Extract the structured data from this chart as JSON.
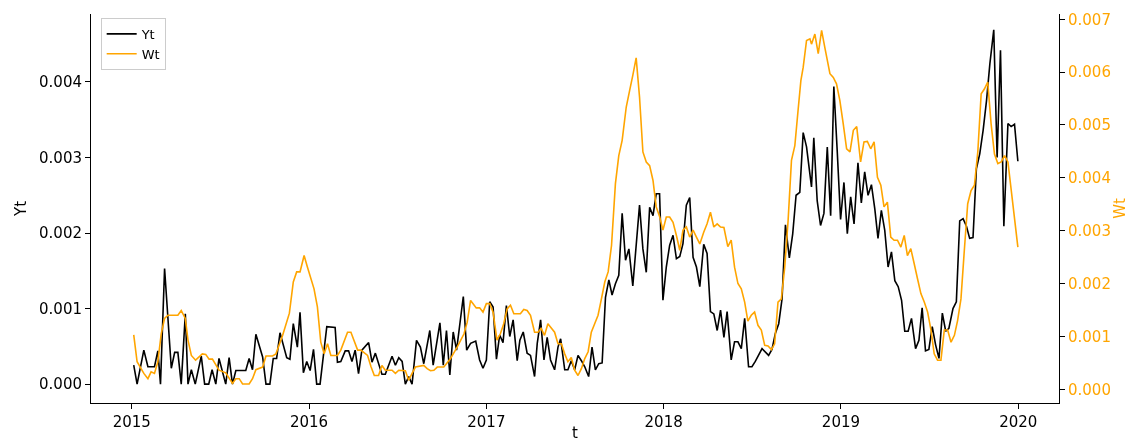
{
  "chart_data": {
    "type": "line",
    "xlabel": "t",
    "ylabel": "Yt",
    "y2label": "Wt",
    "xlim": [
      2014.77,
      2020.23
    ],
    "xticks": [
      2015,
      2016,
      2017,
      2018,
      2019,
      2020
    ],
    "ylim": [
      -0.00025,
      0.0049
    ],
    "yticks": [
      {
        "value": 0,
        "label": "0.000"
      },
      {
        "value": 0.001,
        "label": "0.001"
      },
      {
        "value": 0.002,
        "label": "0.002"
      },
      {
        "value": 0.003,
        "label": "0.003"
      },
      {
        "value": 0.004,
        "label": "0.004"
      }
    ],
    "y2lim": [
      -0.00026,
      0.0071
    ],
    "y2ticks": [
      {
        "value": 0,
        "label": "0.000"
      },
      {
        "value": 0.001,
        "label": "0.001"
      },
      {
        "value": 0.002,
        "label": "0.002"
      },
      {
        "value": 0.003,
        "label": "0.003"
      },
      {
        "value": 0.004,
        "label": "0.004"
      },
      {
        "value": 0.005,
        "label": "0.005"
      },
      {
        "value": 0.006,
        "label": "0.006"
      },
      {
        "value": 0.007,
        "label": "0.007"
      }
    ],
    "grid": false,
    "legend": "top left",
    "marker": "none",
    "line_style": "solid",
    "series": [
      {
        "name": "Yt",
        "color": "#000000",
        "x": [
          2015.011,
          2015.03,
          2015.068,
          2015.091,
          2015.128,
          2015.147,
          2015.162,
          2015.185,
          2015.223,
          2015.242,
          2015.26,
          2015.279,
          2015.302,
          2015.317,
          2015.336,
          2015.358,
          2015.392,
          2015.411,
          2015.434,
          2015.453,
          2015.474,
          2015.492,
          2015.53,
          2015.549,
          2015.568,
          2015.587,
          2015.643,
          2015.662,
          2015.681,
          2015.7,
          2015.738,
          2015.757,
          2015.779,
          2015.798,
          2015.817,
          2015.836,
          2015.874,
          2015.892,
          2015.911,
          2015.934,
          2015.949,
          2015.968,
          2015.987,
          2016.006,
          2016.025,
          2016.043,
          2016.062,
          2016.1,
          2016.147,
          2016.16,
          2016.179,
          2016.204,
          2016.223,
          2016.242,
          2016.26,
          2016.279,
          2016.298,
          2016.336,
          2016.355,
          2016.374,
          2016.411,
          2016.43,
          2016.468,
          2016.487,
          2016.506,
          2016.525,
          2016.543,
          2016.562,
          2016.581,
          2016.606,
          2016.628,
          2016.647,
          2016.681,
          2016.7,
          2016.738,
          2016.757,
          2016.775,
          2016.794,
          2016.813,
          2016.832,
          2016.87,
          2016.889,
          2016.911,
          2016.94,
          2016.962,
          2016.981,
          2017.0,
          2017.019,
          2017.038,
          2017.057,
          2017.075,
          2017.094,
          2017.113,
          2017.132,
          2017.151,
          2017.174,
          2017.189,
          2017.208,
          2017.23,
          2017.249,
          2017.272,
          2017.287,
          2017.306,
          2017.325,
          2017.343,
          2017.362,
          2017.385,
          2017.404,
          2017.419,
          2017.442,
          2017.46,
          2017.479,
          2017.498,
          2017.517,
          2017.536,
          2017.555,
          2017.577,
          2017.596,
          2017.615,
          2017.634,
          2017.653,
          2017.672,
          2017.691,
          2017.709,
          2017.728,
          2017.747,
          2017.766,
          2017.785,
          2017.804,
          2017.826,
          2017.864,
          2017.883,
          2017.902,
          2017.921,
          2017.94,
          2017.958,
          2017.977,
          2017.996,
          2018.015,
          2018.034,
          2018.053,
          2018.072,
          2018.091,
          2018.109,
          2018.128,
          2018.147,
          2018.166,
          2018.185,
          2018.204,
          2018.226,
          2018.245,
          2018.264,
          2018.283,
          2018.302,
          2018.321,
          2018.34,
          2018.358,
          2018.381,
          2018.4,
          2018.419,
          2018.438,
          2018.457,
          2018.479,
          2018.498,
          2018.517,
          2018.555,
          2018.592,
          2018.611,
          2018.63,
          2018.649,
          2018.668,
          2018.687,
          2018.709,
          2018.728,
          2018.747,
          2018.768,
          2018.787,
          2018.806,
          2018.825,
          2018.834,
          2018.847,
          2018.866,
          2018.885,
          2018.904,
          2018.923,
          2018.942,
          2018.96,
          2018.979,
          2018.998,
          2019.017,
          2019.036,
          2019.055,
          2019.074,
          2019.096,
          2019.115,
          2019.134,
          2019.153,
          2019.172,
          2019.191,
          2019.209,
          2019.228,
          2019.247,
          2019.266,
          2019.285,
          2019.304,
          2019.323,
          2019.342,
          2019.36,
          2019.379,
          2019.398,
          2019.421,
          2019.44,
          2019.458,
          2019.477,
          2019.496,
          2019.515,
          2019.534,
          2019.553,
          2019.572,
          2019.591,
          2019.609,
          2019.632,
          2019.651,
          2019.67,
          2019.689,
          2019.708,
          2019.726,
          2019.745,
          2019.764,
          2019.783,
          2019.802,
          2019.821,
          2019.84,
          2019.862,
          2019.881,
          2019.9,
          2019.919,
          2019.942,
          2019.96,
          2019.979,
          2019.998
        ],
        "values": [
          0.00025,
          0,
          0.00045,
          0.00023,
          0.00023,
          0.00044,
          0,
          0.00153,
          0.00021,
          0.00042,
          0.00042,
          0,
          0.00093,
          0,
          0.00019,
          0,
          0.00037,
          0,
          0,
          0.00019,
          0,
          0.00034,
          0,
          0.00035,
          0,
          0.00018,
          0.00018,
          0.00034,
          0.00019,
          0.00066,
          0.00036,
          0,
          0,
          0.00034,
          0.00034,
          0.00068,
          0.00035,
          0.00033,
          0.0008,
          0.00049,
          0.00095,
          0.00015,
          0.0003,
          0.00018,
          0.00046,
          0,
          0,
          0.00076,
          0.00075,
          0.00029,
          0.0003,
          0.00044,
          0.00044,
          0.0003,
          0.00045,
          0.00014,
          0.00045,
          0.00055,
          0.00029,
          0.00041,
          0.00013,
          0.00013,
          0.00037,
          0.00025,
          0.00035,
          0.0003,
          0,
          0.0001,
          0,
          0.00058,
          0.00049,
          0.00027,
          0.00071,
          0.00025,
          0.00081,
          0.00025,
          0.00071,
          0.00012,
          0.00069,
          0.00045,
          0.00116,
          0.00045,
          0.00054,
          0.00057,
          0.00032,
          0.00021,
          0.00032,
          0.00109,
          0.00102,
          0.00033,
          0.00065,
          0.00055,
          0.00104,
          0.00063,
          0.00085,
          0.00031,
          0.00058,
          0.00069,
          0.00041,
          0.00038,
          0.0001,
          0.00054,
          0.00085,
          0.00032,
          0.00062,
          0.00032,
          0.00019,
          0.00049,
          0.0006,
          0.00019,
          0.00019,
          0.00031,
          0.00019,
          0.00038,
          0.00031,
          0.00023,
          0.0001,
          0.00049,
          0.00019,
          0.00027,
          0.00028,
          0.00115,
          0.00138,
          0.00118,
          0.00133,
          0.00144,
          0.00226,
          0.00164,
          0.00179,
          0.0013,
          0.00237,
          0.00179,
          0.00148,
          0.00234,
          0.00223,
          0.00252,
          0.00252,
          0.00111,
          0.00155,
          0.00184,
          0.00197,
          0.00166,
          0.00169,
          0.00186,
          0.00237,
          0.00247,
          0.00168,
          0.00155,
          0.00129,
          0.00185,
          0.00173,
          0.00096,
          0.00093,
          0.00071,
          0.00098,
          0.00062,
          0.00096,
          0.00032,
          0.00056,
          0.00056,
          0.00047,
          0.00087,
          0.00023,
          0.00023,
          0.0003,
          0.00047,
          0.00038,
          0.00046,
          0.00067,
          0.0008,
          0.00113,
          0.00211,
          0.00167,
          0.00199,
          0.0025,
          0.00254,
          0.00333,
          0.00314,
          0.00278,
          0.00261,
          0.00326,
          0.00243,
          0.0021,
          0.00226,
          0.00314,
          0.00223,
          0.00394,
          0.00309,
          0.00218,
          0.00267,
          0.00199,
          0.00248,
          0.00212,
          0.00293,
          0.0024,
          0.00281,
          0.0025,
          0.00264,
          0.00232,
          0.00193,
          0.0023,
          0.00204,
          0.00155,
          0.00175,
          0.00137,
          0.00129,
          0.00111,
          0.0007,
          0.0007,
          0.00087,
          0.00047,
          0.00058,
          0.00101,
          0.00044,
          0.00046,
          0.00076,
          0.00052,
          0.00034,
          0.00094,
          0.0007,
          0.00074,
          0.001,
          0.00109,
          0.00216,
          0.00219,
          0.00209,
          0.00193,
          0.00194,
          0.00285,
          0.00305,
          0.00336,
          0.00375,
          0.00424,
          0.00469,
          0.003,
          0.00442,
          0.00209,
          0.00345,
          0.00341,
          0.00344,
          0.00295
        ]
      },
      {
        "name": "Wt",
        "color": "#ffa500",
        "axis": "y2",
        "x": [
          2015.011,
          2015.03,
          2015.068,
          2015.091,
          2015.109,
          2015.128,
          2015.147,
          2015.166,
          2015.185,
          2015.204,
          2015.26,
          2015.279,
          2015.302,
          2015.317,
          2015.336,
          2015.36,
          2015.398,
          2015.417,
          2015.436,
          2015.455,
          2015.492,
          2015.53,
          2015.568,
          2015.587,
          2015.606,
          2015.625,
          2015.662,
          2015.681,
          2015.7,
          2015.738,
          2015.757,
          2015.794,
          2015.813,
          2015.851,
          2015.889,
          2015.911,
          2015.93,
          2015.949,
          2015.972,
          2015.991,
          2016.028,
          2016.047,
          2016.066,
          2016.085,
          2016.104,
          2016.123,
          2016.16,
          2016.179,
          2016.217,
          2016.236,
          2016.274,
          2016.292,
          2016.33,
          2016.349,
          2016.368,
          2016.392,
          2016.411,
          2016.43,
          2016.468,
          2016.487,
          2016.506,
          2016.543,
          2016.562,
          2016.581,
          2016.6,
          2016.647,
          2016.666,
          2016.685,
          2016.704,
          2016.723,
          2016.76,
          2016.798,
          2016.836,
          2016.874,
          2016.892,
          2016.911,
          2016.925,
          2016.943,
          2016.962,
          2016.981,
          2017.0,
          2017.019,
          2017.038,
          2017.06,
          2017.079,
          2017.098,
          2017.117,
          2017.136,
          2017.155,
          2017.192,
          2017.211,
          2017.23,
          2017.249,
          2017.272,
          2017.291,
          2017.309,
          2017.328,
          2017.347,
          2017.385,
          2017.404,
          2017.423,
          2017.442,
          2017.46,
          2017.479,
          2017.498,
          2017.517,
          2017.536,
          2017.555,
          2017.574,
          2017.592,
          2017.611,
          2017.63,
          2017.649,
          2017.668,
          2017.687,
          2017.706,
          2017.728,
          2017.747,
          2017.766,
          2017.789,
          2017.808,
          2017.826,
          2017.845,
          2017.864,
          2017.883,
          2017.902,
          2017.921,
          2017.94,
          2017.958,
          2017.977,
          2017.996,
          2018.015,
          2018.034,
          2018.053,
          2018.072,
          2018.091,
          2018.109,
          2018.128,
          2018.147,
          2018.166,
          2018.185,
          2018.204,
          2018.226,
          2018.245,
          2018.264,
          2018.283,
          2018.302,
          2018.321,
          2018.34,
          2018.362,
          2018.381,
          2018.4,
          2018.419,
          2018.438,
          2018.457,
          2018.475,
          2018.494,
          2018.513,
          2018.532,
          2018.551,
          2018.57,
          2018.589,
          2018.608,
          2018.626,
          2018.645,
          2018.664,
          2018.683,
          2018.702,
          2018.721,
          2018.74,
          2018.758,
          2018.774,
          2018.787,
          2018.806,
          2018.825,
          2018.834,
          2018.853,
          2018.872,
          2018.891,
          2018.909,
          2018.938,
          2018.957,
          2018.975,
          2018.994,
          2019.013,
          2019.032,
          2019.051,
          2019.07,
          2019.089,
          2019.111,
          2019.13,
          2019.149,
          2019.168,
          2019.187,
          2019.206,
          2019.225,
          2019.243,
          2019.262,
          2019.281,
          2019.3,
          2019.319,
          2019.338,
          2019.357,
          2019.375,
          2019.394,
          2019.413,
          2019.432,
          2019.451,
          2019.47,
          2019.489,
          2019.508,
          2019.526,
          2019.545,
          2019.564,
          2019.583,
          2019.602,
          2019.621,
          2019.64,
          2019.658,
          2019.677,
          2019.696,
          2019.715,
          2019.734,
          2019.753,
          2019.772,
          2019.791,
          2019.809,
          2019.828,
          2019.847,
          2019.866,
          2019.885,
          2019.904,
          2019.923,
          2019.942,
          2019.998
        ],
        "values": [
          0.00103,
          0.00052,
          0.0003,
          0.0002,
          0.00033,
          0.0003,
          0.00052,
          0.00105,
          0.00134,
          0.0014,
          0.0014,
          0.00149,
          0.00134,
          0.00093,
          0.00064,
          0.00055,
          0.00067,
          0.00066,
          0.00057,
          0.00057,
          0.00036,
          0.00031,
          0.00011,
          0.0002,
          0.0002,
          0.0001,
          0.0001,
          0.0002,
          0.00037,
          0.00042,
          0.00063,
          0.00063,
          0.00067,
          0.00102,
          0.00144,
          0.00203,
          0.00222,
          0.00222,
          0.00253,
          0.00231,
          0.0019,
          0.00156,
          0.00089,
          0.00067,
          0.00086,
          0.00064,
          0.00064,
          0.00074,
          0.00108,
          0.00108,
          0.00074,
          0.00074,
          0.00064,
          0.00043,
          0.00026,
          0.00026,
          0.00045,
          0.00036,
          0.00036,
          0.0003,
          0.00036,
          0.00035,
          0.00017,
          0.0003,
          0.00042,
          0.00045,
          0.00039,
          0.00035,
          0.00036,
          0.00042,
          0.00042,
          0.00058,
          0.0008,
          0.00105,
          0.00127,
          0.00168,
          0.00162,
          0.00154,
          0.00154,
          0.00146,
          0.00162,
          0.00162,
          0.00146,
          0.00093,
          0.00105,
          0.00124,
          0.00152,
          0.00159,
          0.00143,
          0.00143,
          0.00151,
          0.00149,
          0.0014,
          0.00108,
          0.00108,
          0.00115,
          0.00102,
          0.00124,
          0.00108,
          0.00086,
          0.00086,
          0.00067,
          0.00052,
          0.0006,
          0.00036,
          0.00026,
          0.00039,
          0.00058,
          0.00071,
          0.00108,
          0.00124,
          0.0014,
          0.00171,
          0.00203,
          0.00222,
          0.00272,
          0.00389,
          0.00442,
          0.00471,
          0.00534,
          0.00565,
          0.00594,
          0.00627,
          0.00553,
          0.00449,
          0.0043,
          0.00423,
          0.00395,
          0.00345,
          0.00327,
          0.00301,
          0.00326,
          0.00326,
          0.00316,
          0.00291,
          0.00263,
          0.00301,
          0.00307,
          0.00288,
          0.00301,
          0.00288,
          0.00275,
          0.00297,
          0.00313,
          0.00335,
          0.00307,
          0.00313,
          0.00307,
          0.00306,
          0.0027,
          0.00282,
          0.00231,
          0.002,
          0.0019,
          0.00165,
          0.00129,
          0.0014,
          0.00146,
          0.00121,
          0.00112,
          0.00083,
          0.00082,
          0.00075,
          0.00086,
          0.00165,
          0.00171,
          0.00231,
          0.00319,
          0.00433,
          0.00461,
          0.00527,
          0.00584,
          0.00609,
          0.0066,
          0.00663,
          0.00653,
          0.00672,
          0.00635,
          0.00679,
          0.00647,
          0.00597,
          0.0059,
          0.00578,
          0.00546,
          0.00502,
          0.00455,
          0.00449,
          0.0049,
          0.00497,
          0.0043,
          0.00468,
          0.00469,
          0.00455,
          0.00468,
          0.00401,
          0.00386,
          0.00345,
          0.00354,
          0.00288,
          0.00282,
          0.00282,
          0.00269,
          0.00291,
          0.00253,
          0.00266,
          0.00238,
          0.00209,
          0.00181,
          0.00165,
          0.00146,
          0.00112,
          0.00067,
          0.00055,
          0.00055,
          0.00112,
          0.00112,
          0.00089,
          0.00102,
          0.0013,
          0.00171,
          0.00263,
          0.00351,
          0.00376,
          0.00386,
          0.00449,
          0.00559,
          0.00568,
          0.00581,
          0.00502,
          0.00445,
          0.00427,
          0.0043,
          0.00442,
          0.0043,
          0.00269
        ]
      }
    ]
  }
}
